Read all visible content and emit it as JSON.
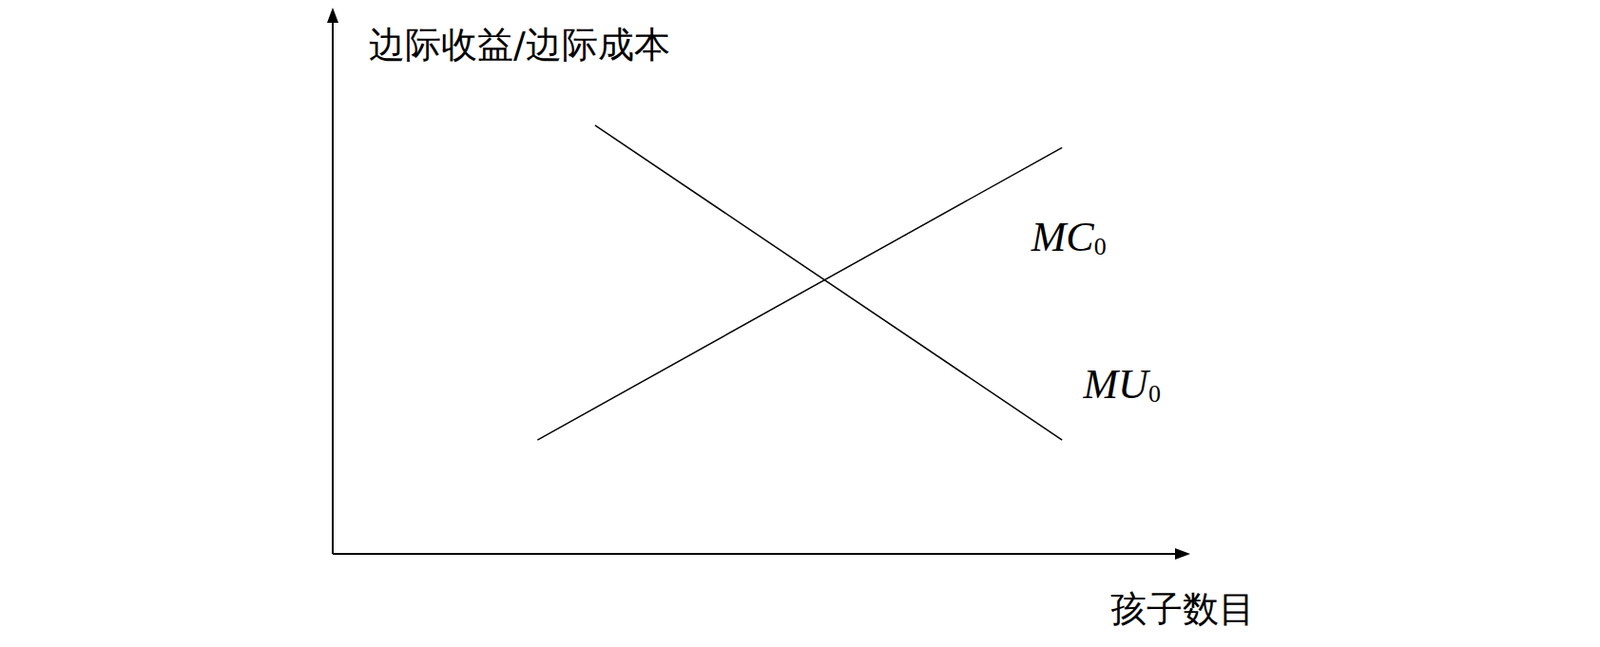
{
  "chart_data": {
    "type": "line",
    "x_label": "孩子数目",
    "y_label": "边际收益/边际成本",
    "xlim": [
      0,
      100
    ],
    "ylim": [
      0,
      100
    ],
    "tick_labels": false,
    "grid": false,
    "series": [
      {
        "name": "MC0",
        "color": "#000000",
        "x": [
          24.2,
          86.2
        ],
        "values": [
          21,
          74.9
        ]
      },
      {
        "name": "MU0",
        "color": "#000000",
        "x": [
          31,
          86.2
        ],
        "values": [
          79,
          21
        ]
      }
    ]
  }
}
